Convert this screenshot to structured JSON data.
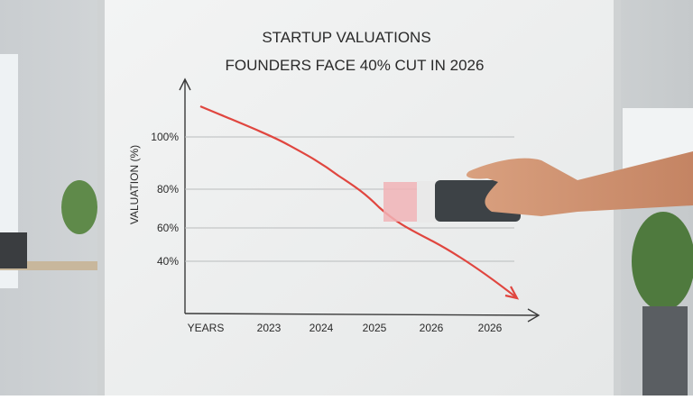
{
  "whiteboard": {
    "title": "STARTUP VALUATIONS",
    "subtitle": "FOUNDERS FACE 40% CUT IN 2026",
    "y_axis_label": "VALUATION  (%)",
    "y_tick_labels": [
      "100%",
      "80%",
      "60%",
      "40%"
    ],
    "x_axis_label": "YEARS",
    "x_tick_labels": [
      "2023",
      "2024",
      "2025",
      "2026",
      "2026"
    ]
  }
}
